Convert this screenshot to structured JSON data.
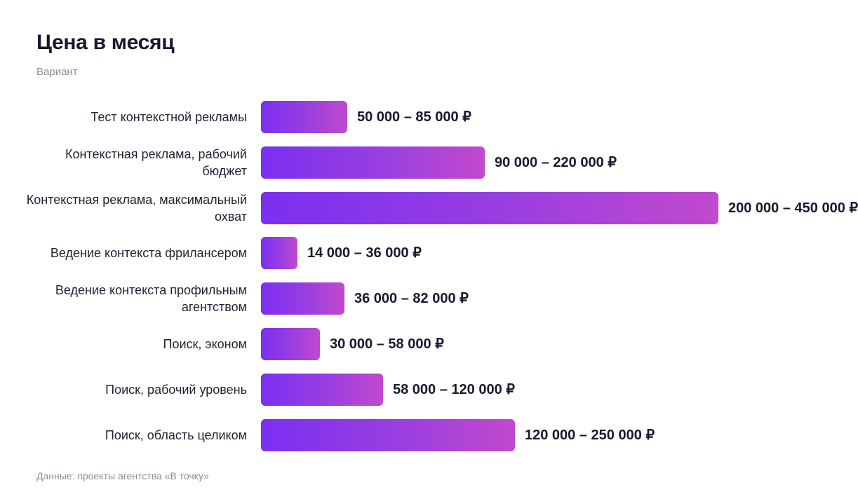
{
  "chart_data": {
    "type": "bar",
    "orientation": "horizontal",
    "title": "Цена в месяц",
    "subtitle": "Вариант",
    "source": "Данные: проекты агентства «В точку»",
    "currency": "₽",
    "categories": [
      "Тест контекстной рекламы",
      "Контекстная реклама, рабочий бюджет",
      "Контекстная реклама, максимальный охват",
      "Ведение контекста фрилансером",
      "Ведение контекста профильным агентством",
      "Поиск, эконом",
      "Поиск, рабочий уровень",
      "Поиск, область целиком"
    ],
    "series": [
      {
        "min": [
          50000,
          90000,
          200000,
          14000,
          36000,
          30000,
          58000,
          120000
        ],
        "max": [
          85000,
          220000,
          450000,
          36000,
          82000,
          58000,
          120000,
          250000
        ]
      }
    ],
    "value_labels": [
      "50 000 – 85 000 ₽",
      "90 000 – 220 000 ₽",
      "200 000 – 450 000 ₽",
      "14 000 – 36 000 ₽",
      "36 000 – 82 000 ₽",
      "30 000 – 58 000 ₽",
      "58 000 – 120 000 ₽",
      "120 000 – 250 000 ₽"
    ],
    "colors": {
      "bar_start": "#7b2ff0",
      "bar_end": "#c149cd"
    },
    "grid": false,
    "legend": "none"
  }
}
